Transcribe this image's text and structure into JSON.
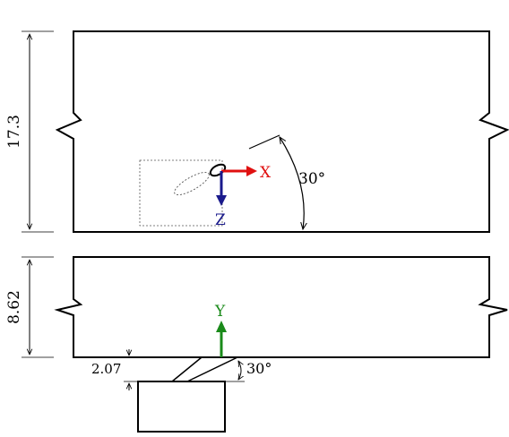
{
  "top_view": {
    "height_label": "17.3",
    "angle_label": "30°",
    "axis_x_label": "X",
    "axis_z_label": "Z",
    "axis_x_color": "#e01010",
    "axis_z_color": "#1a1a8c"
  },
  "side_view": {
    "height_label": "8.62",
    "offset_label": "2.07",
    "angle_label": "30°",
    "axis_y_label": "Y",
    "axis_y_color": "#1a8a1a"
  },
  "colors": {
    "line": "#000000",
    "inset_box": "#555555"
  }
}
